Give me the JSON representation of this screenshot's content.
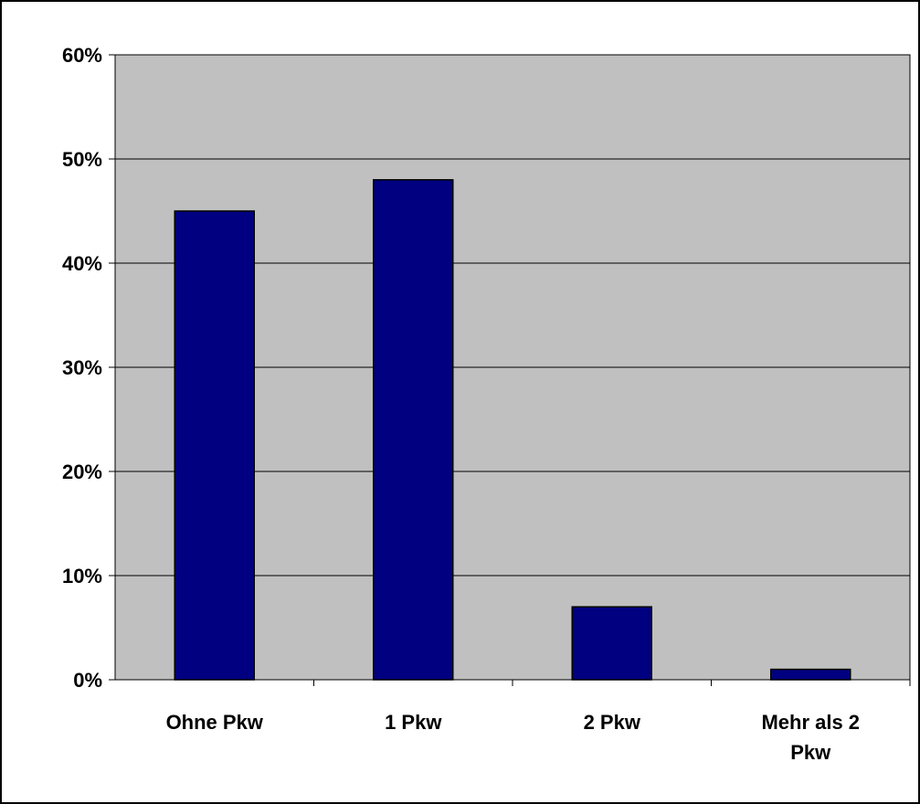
{
  "chart_data": {
    "type": "bar",
    "categories": [
      [
        "Ohne Pkw"
      ],
      [
        "1 Pkw"
      ],
      [
        "2 Pkw"
      ],
      [
        "Mehr als 2",
        "Pkw"
      ]
    ],
    "values": [
      45,
      48,
      7,
      1
    ],
    "yticks": [
      "0%",
      "10%",
      "20%",
      "30%",
      "40%",
      "50%",
      "60%"
    ],
    "ylim": [
      0,
      60
    ],
    "grid": true,
    "legend": "none",
    "colors": {
      "bar": "#000080",
      "plot_background": "#C0C0C0",
      "gridline": "#000000",
      "border": "#000000"
    }
  }
}
